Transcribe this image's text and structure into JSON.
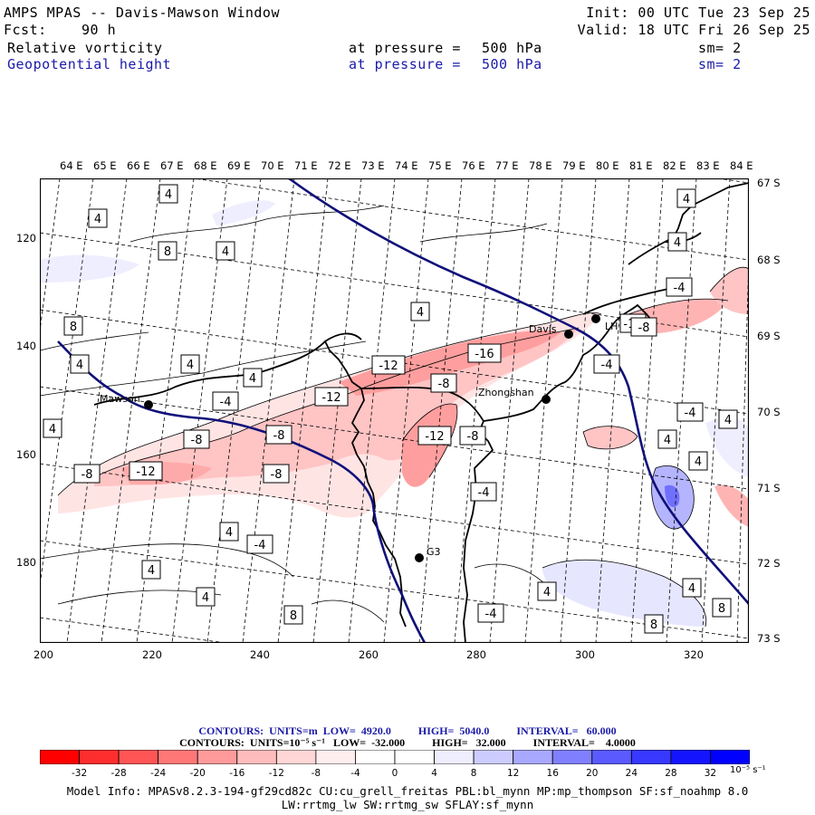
{
  "header": {
    "title": "AMPS MPAS -- Davis-Mawson Window",
    "fcst_label": "Fcst:",
    "fcst_value": "90 h",
    "init": "Init: 00 UTC Tue 23 Sep 25",
    "valid": "Valid: 18 UTC Fri 26 Sep 25",
    "field1": {
      "name": "Relative vorticity",
      "pressure_label": "at pressure =",
      "pressure": "500 hPa",
      "smooth": "sm= 2"
    },
    "field2": {
      "name": "Geopotential height",
      "pressure_label": "at pressure =",
      "pressure": "500 hPa",
      "smooth": "sm= 2"
    }
  },
  "map": {
    "lon_labels": [
      "64 E",
      "65 E",
      "66 E",
      "67 E",
      "68 E",
      "69 E",
      "70 E",
      "71 E",
      "72 E",
      "73 E",
      "74 E",
      "75 E",
      "76 E",
      "77 E",
      "78 E",
      "79 E",
      "80 E",
      "81 E",
      "82 E",
      "83 E",
      "84 E"
    ],
    "lat_labels": [
      "67 S",
      "68 S",
      "69 S",
      "70 S",
      "71 S",
      "72 S",
      "73 S"
    ],
    "x_ticks": [
      "200",
      "220",
      "240",
      "260",
      "280",
      "300",
      "320"
    ],
    "y_ticks": [
      "120",
      "140",
      "160",
      "180"
    ],
    "stations": [
      {
        "name": "Davis"
      },
      {
        "name": "Zhongshan"
      },
      {
        "name": "Mawson"
      },
      {
        "name": "G3"
      },
      {
        "name": "LH"
      }
    ],
    "contour_labels": [
      "4",
      "4",
      "8",
      "4",
      "8",
      "4",
      "4",
      "4",
      "4",
      "4",
      "-4",
      "-8",
      "-12",
      "-16",
      "-12",
      "-8",
      "-12",
      "-8",
      "-8",
      "-12",
      "-8",
      "-8",
      "-12",
      "-4",
      "4",
      "4",
      "-4",
      "4",
      "-4",
      "4",
      "4",
      "-8",
      "-4",
      "4",
      "4",
      "-4",
      "-4",
      "4",
      "8",
      "4",
      "8",
      "4",
      "8"
    ]
  },
  "contours_info": {
    "height": "CONTOURS:  UNITS=m  LOW=  4920.0          HIGH=  5040.0          INTERVAL=   60.000",
    "vort": "CONTOURS:  UNITS=10⁻⁵ s⁻¹   LOW=  -32.000          HIGH=   32.000          INTERVAL=    4.0000"
  },
  "colorbar": {
    "ticks": [
      "-32",
      "-28",
      "-24",
      "-20",
      "-16",
      "-12",
      "-8",
      "-4",
      "0",
      "4",
      "8",
      "12",
      "16",
      "20",
      "24",
      "28",
      "32"
    ],
    "units": "10⁻⁵ s⁻¹",
    "colors": [
      "#ff0000",
      "#ff2e2e",
      "#ff5555",
      "#ff7777",
      "#ff9a9a",
      "#ffbcbc",
      "#ffd6d6",
      "#ffeeee",
      "#ffffff",
      "#ffffff",
      "#eeeeff",
      "#ccccff",
      "#a8a8ff",
      "#8080ff",
      "#5a5aff",
      "#3838ff",
      "#1414ff",
      "#0000ff"
    ]
  },
  "model_info": {
    "line1": "Model Info: MPASv8.2.3-194-gf29cd82c CU:cu_grell_freitas PBL:bl_mynn MP:mp_thompson SF:sf_noahmp 8.0",
    "line2": "LW:rrtmg_lw SW:rrtmg_sw SFLAY:sf_mynn"
  }
}
